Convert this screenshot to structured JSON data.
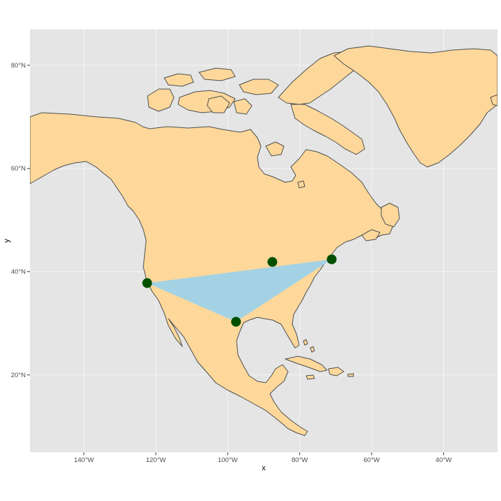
{
  "chart_data": {
    "type": "map",
    "projection": "equirectangular (longitude/latitude)",
    "xlabel": "x",
    "ylabel": "y",
    "xlim": [
      -155,
      -25
    ],
    "ylim": [
      5,
      87
    ],
    "grid": true,
    "x_ticks": [
      {
        "value": -140,
        "label": "140°W"
      },
      {
        "value": -120,
        "label": "120°W"
      },
      {
        "value": -100,
        "label": "100°W"
      },
      {
        "value": -80,
        "label": "80°W"
      },
      {
        "value": -60,
        "label": "60°W"
      },
      {
        "value": -40,
        "label": "40°W"
      }
    ],
    "y_ticks": [
      {
        "value": 20,
        "label": "20°N"
      },
      {
        "value": 40,
        "label": "40°N"
      },
      {
        "value": 60,
        "label": "60°N"
      },
      {
        "value": 80,
        "label": "80°N"
      }
    ],
    "points": [
      {
        "lon": -122.4,
        "lat": 37.8
      },
      {
        "lon": -87.6,
        "lat": 41.9
      },
      {
        "lon": -71.1,
        "lat": 42.4
      },
      {
        "lon": -97.7,
        "lat": 30.3
      }
    ],
    "polygon_order": [
      0,
      2,
      3
    ],
    "colors": {
      "panel": "#e5e5e5",
      "grid": "#f5f5f5",
      "land": "#fed89b",
      "coast": "#4d4d4d",
      "polygon": "#a3d2e5",
      "point": "#005000"
    }
  }
}
